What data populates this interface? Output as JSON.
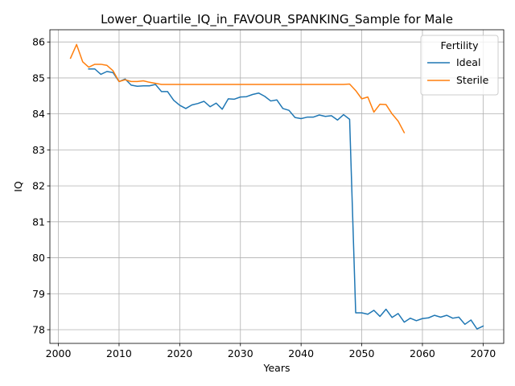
{
  "chart_data": {
    "type": "line",
    "title": "Lower_Quartile_IQ_in_FAVOUR_SPANKING_Sample for Male",
    "xlabel": "Years",
    "ylabel": "IQ",
    "xlim": [
      1998.6,
      2073.4
    ],
    "ylim": [
      77.62,
      86.34
    ],
    "x_ticks": [
      2000,
      2010,
      2020,
      2030,
      2040,
      2050,
      2060,
      2070
    ],
    "y_ticks": [
      78,
      79,
      80,
      81,
      82,
      83,
      84,
      85,
      86
    ],
    "grid": true,
    "legend": {
      "title": "Fertility",
      "placement": "top-right"
    },
    "series": [
      {
        "name": "Ideal",
        "color": "#1f77b4",
        "x": [
          2005,
          2006,
          2007,
          2008,
          2009,
          2010,
          2011,
          2012,
          2013,
          2014,
          2015,
          2016,
          2017,
          2018,
          2019,
          2020,
          2021,
          2022,
          2023,
          2024,
          2025,
          2026,
          2027,
          2028,
          2029,
          2030,
          2031,
          2032,
          2033,
          2034,
          2035,
          2036,
          2037,
          2038,
          2039,
          2040,
          2041,
          2042,
          2043,
          2044,
          2045,
          2046,
          2047,
          2048,
          2049,
          2050,
          2051,
          2052,
          2053,
          2054,
          2055,
          2056,
          2057,
          2058,
          2059,
          2060,
          2061,
          2062,
          2063,
          2064,
          2065,
          2066,
          2067,
          2068,
          2069,
          2070
        ],
        "y": [
          85.25,
          85.25,
          85.1,
          85.18,
          85.15,
          84.9,
          84.97,
          84.8,
          84.77,
          84.78,
          84.78,
          84.82,
          84.62,
          84.62,
          84.38,
          84.24,
          84.15,
          84.25,
          84.29,
          84.35,
          84.2,
          84.3,
          84.13,
          84.42,
          84.41,
          84.47,
          84.48,
          84.54,
          84.58,
          84.49,
          84.36,
          84.39,
          84.15,
          84.1,
          83.9,
          83.87,
          83.91,
          83.91,
          83.97,
          83.93,
          83.95,
          83.83,
          83.98,
          83.85,
          78.47,
          78.47,
          78.43,
          78.54,
          78.37,
          78.57,
          78.34,
          78.45,
          78.21,
          78.32,
          78.25,
          78.31,
          78.33,
          78.4,
          78.35,
          78.4,
          78.32,
          78.35,
          78.15,
          78.27,
          78.02,
          78.1
        ]
      },
      {
        "name": "Sterile",
        "color": "#ff7f0e",
        "x": [
          2002,
          2003,
          2004,
          2005,
          2006,
          2007,
          2008,
          2009,
          2010,
          2011,
          2012,
          2013,
          2014,
          2015,
          2016,
          2017,
          2018,
          2019,
          2020,
          2021,
          2022,
          2023,
          2024,
          2025,
          2026,
          2027,
          2028,
          2029,
          2030,
          2031,
          2032,
          2033,
          2034,
          2035,
          2036,
          2037,
          2038,
          2039,
          2040,
          2041,
          2042,
          2043,
          2044,
          2045,
          2046,
          2047,
          2048,
          2049,
          2050,
          2051,
          2052,
          2053,
          2054,
          2055,
          2056,
          2057
        ],
        "y": [
          85.55,
          85.93,
          85.45,
          85.3,
          85.38,
          85.38,
          85.35,
          85.2,
          84.9,
          84.95,
          84.9,
          84.9,
          84.92,
          84.88,
          84.85,
          84.82,
          84.82,
          84.82,
          84.82,
          84.82,
          84.82,
          84.82,
          84.82,
          84.82,
          84.82,
          84.82,
          84.82,
          84.82,
          84.82,
          84.82,
          84.82,
          84.82,
          84.82,
          84.82,
          84.82,
          84.82,
          84.82,
          84.82,
          84.82,
          84.82,
          84.82,
          84.82,
          84.82,
          84.82,
          84.82,
          84.82,
          84.83,
          84.65,
          84.42,
          84.47,
          84.05,
          84.27,
          84.26,
          84.0,
          83.8,
          83.48
        ]
      }
    ]
  }
}
